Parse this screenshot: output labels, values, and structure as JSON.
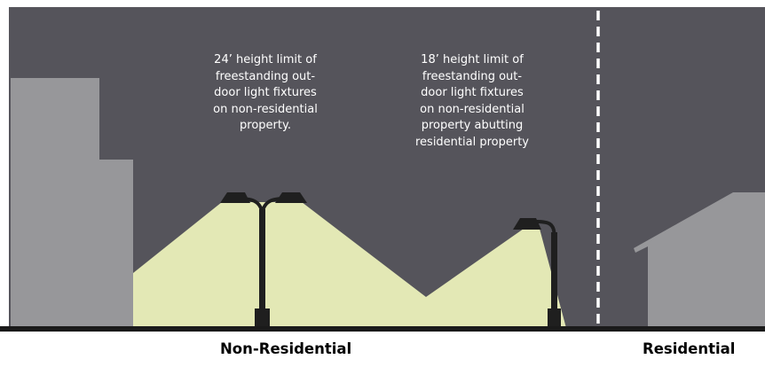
{
  "callouts": {
    "left": "24’ height limit of\nfreestanding out-\ndoor light fixtures\non non-residential\nproperty.",
    "right": "18’ height limit of\nfreestanding out-\ndoor light fixtures\non non-residential\nproperty abutting\nresidential property"
  },
  "zones": {
    "non_residential": "Non-Residential",
    "residential": "Residential"
  },
  "colors": {
    "sky": "#55545b",
    "light_cone": "#e3e8b5",
    "building": "#97979a",
    "fixture": "#1f1f1f",
    "ground": "#1a1a1a",
    "property_line": "#ffffff"
  }
}
